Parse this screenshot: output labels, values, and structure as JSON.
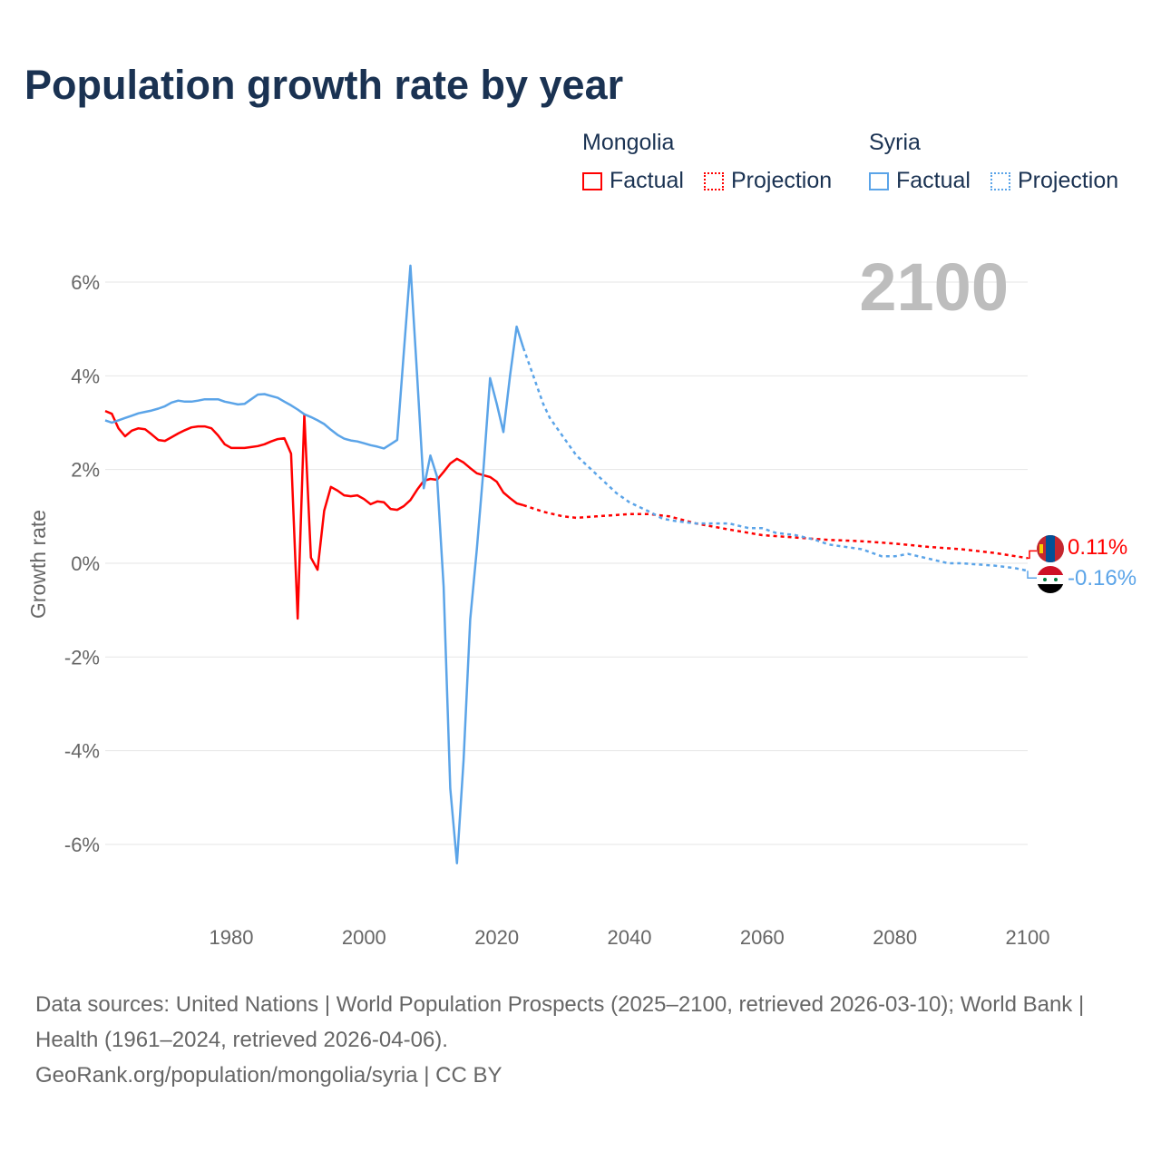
{
  "title": "Population growth rate by year",
  "legend": {
    "groups": [
      {
        "name": "Mongolia",
        "color": "#ff0000",
        "factual": "Factual",
        "projection": "Projection"
      },
      {
        "name": "Syria",
        "color": "#5ba4e8",
        "factual": "Factual",
        "projection": "Projection"
      }
    ]
  },
  "year_label": "2100",
  "end_labels": {
    "mongolia": "0.11%",
    "syria": "-0.16%"
  },
  "source": {
    "line1": "Data sources: United Nations | World Population Prospects (2025–2100, retrieved 2026-03-10); World Bank | Health (1961–2024, retrieved 2026-04-06).",
    "line2": "GeoRank.org/population/mongolia/syria | CC BY"
  },
  "chart_data": {
    "type": "line",
    "title": "Population growth rate by year",
    "xlabel": "",
    "ylabel": "Growth rate",
    "xlim": [
      1961,
      2100
    ],
    "ylim": [
      -7,
      6.5
    ],
    "xticks": [
      1980,
      2000,
      2020,
      2040,
      2060,
      2080,
      2100
    ],
    "yticks": [
      {
        "v": 6,
        "l": "6%"
      },
      {
        "v": 4,
        "l": "4%"
      },
      {
        "v": 2,
        "l": "2%"
      },
      {
        "v": 0,
        "l": "0%"
      },
      {
        "v": -2,
        "l": "-2%"
      },
      {
        "v": -4,
        "l": "-4%"
      },
      {
        "v": -6,
        "l": "-6%"
      }
    ],
    "series": [
      {
        "name": "Mongolia",
        "type": "factual",
        "color": "#ff0000",
        "points": [
          [
            1961,
            3.25
          ],
          [
            1962,
            3.19
          ],
          [
            1963,
            2.88
          ],
          [
            1964,
            2.71
          ],
          [
            1965,
            2.83
          ],
          [
            1966,
            2.88
          ],
          [
            1967,
            2.86
          ],
          [
            1968,
            2.75
          ],
          [
            1969,
            2.63
          ],
          [
            1970,
            2.61
          ],
          [
            1971,
            2.69
          ],
          [
            1972,
            2.77
          ],
          [
            1973,
            2.84
          ],
          [
            1974,
            2.9
          ],
          [
            1975,
            2.92
          ],
          [
            1976,
            2.92
          ],
          [
            1977,
            2.88
          ],
          [
            1978,
            2.73
          ],
          [
            1979,
            2.54
          ],
          [
            1980,
            2.46
          ],
          [
            1981,
            2.46
          ],
          [
            1982,
            2.46
          ],
          [
            1983,
            2.48
          ],
          [
            1984,
            2.5
          ],
          [
            1985,
            2.54
          ],
          [
            1986,
            2.6
          ],
          [
            1987,
            2.65
          ],
          [
            1988,
            2.67
          ],
          [
            1989,
            2.34
          ],
          [
            1990,
            -1.18
          ],
          [
            1991,
            3.17
          ],
          [
            1992,
            0.12
          ],
          [
            1993,
            -0.14
          ],
          [
            1994,
            1.12
          ],
          [
            1995,
            1.63
          ],
          [
            1996,
            1.55
          ],
          [
            1997,
            1.45
          ],
          [
            1998,
            1.43
          ],
          [
            1999,
            1.45
          ],
          [
            2000,
            1.37
          ],
          [
            2001,
            1.26
          ],
          [
            2002,
            1.32
          ],
          [
            2003,
            1.3
          ],
          [
            2004,
            1.16
          ],
          [
            2005,
            1.14
          ],
          [
            2006,
            1.22
          ],
          [
            2007,
            1.35
          ],
          [
            2008,
            1.57
          ],
          [
            2009,
            1.76
          ],
          [
            2010,
            1.8
          ],
          [
            2011,
            1.78
          ],
          [
            2012,
            1.95
          ],
          [
            2013,
            2.13
          ],
          [
            2014,
            2.23
          ],
          [
            2015,
            2.15
          ],
          [
            2016,
            2.03
          ],
          [
            2017,
            1.92
          ],
          [
            2018,
            1.88
          ],
          [
            2019,
            1.84
          ],
          [
            2020,
            1.74
          ],
          [
            2021,
            1.51
          ],
          [
            2022,
            1.39
          ],
          [
            2023,
            1.28
          ],
          [
            2024,
            1.24
          ]
        ]
      },
      {
        "name": "Mongolia",
        "type": "projection",
        "color": "#ff0000",
        "points": [
          [
            2024,
            1.24
          ],
          [
            2027,
            1.1
          ],
          [
            2030,
            1.0
          ],
          [
            2032,
            0.97
          ],
          [
            2035,
            1.0
          ],
          [
            2040,
            1.05
          ],
          [
            2043,
            1.05
          ],
          [
            2046,
            1.0
          ],
          [
            2050,
            0.85
          ],
          [
            2055,
            0.72
          ],
          [
            2060,
            0.6
          ],
          [
            2065,
            0.55
          ],
          [
            2070,
            0.5
          ],
          [
            2075,
            0.47
          ],
          [
            2080,
            0.42
          ],
          [
            2085,
            0.35
          ],
          [
            2090,
            0.3
          ],
          [
            2095,
            0.22
          ],
          [
            2100,
            0.11
          ]
        ]
      },
      {
        "name": "Syria",
        "type": "factual",
        "color": "#5ba4e8",
        "points": [
          [
            1961,
            3.05
          ],
          [
            1962,
            3.0
          ],
          [
            1963,
            3.05
          ],
          [
            1964,
            3.1
          ],
          [
            1965,
            3.15
          ],
          [
            1966,
            3.2
          ],
          [
            1967,
            3.23
          ],
          [
            1968,
            3.26
          ],
          [
            1969,
            3.3
          ],
          [
            1970,
            3.35
          ],
          [
            1971,
            3.43
          ],
          [
            1972,
            3.47
          ],
          [
            1973,
            3.45
          ],
          [
            1974,
            3.45
          ],
          [
            1975,
            3.47
          ],
          [
            1976,
            3.5
          ],
          [
            1977,
            3.5
          ],
          [
            1978,
            3.5
          ],
          [
            1979,
            3.45
          ],
          [
            1980,
            3.42
          ],
          [
            1981,
            3.39
          ],
          [
            1982,
            3.4
          ],
          [
            1983,
            3.5
          ],
          [
            1984,
            3.6
          ],
          [
            1985,
            3.61
          ],
          [
            1986,
            3.57
          ],
          [
            1987,
            3.53
          ],
          [
            1988,
            3.45
          ],
          [
            1989,
            3.37
          ],
          [
            1990,
            3.28
          ],
          [
            1991,
            3.18
          ],
          [
            1992,
            3.12
          ],
          [
            1993,
            3.05
          ],
          [
            1994,
            2.97
          ],
          [
            1995,
            2.85
          ],
          [
            1996,
            2.74
          ],
          [
            1997,
            2.66
          ],
          [
            1998,
            2.62
          ],
          [
            1999,
            2.6
          ],
          [
            2000,
            2.56
          ],
          [
            2001,
            2.52
          ],
          [
            2002,
            2.49
          ],
          [
            2003,
            2.45
          ],
          [
            2004,
            2.54
          ],
          [
            2005,
            2.63
          ],
          [
            2006,
            4.5
          ],
          [
            2007,
            6.35
          ],
          [
            2008,
            4.0
          ],
          [
            2009,
            1.6
          ],
          [
            2010,
            2.3
          ],
          [
            2011,
            1.85
          ],
          [
            2012,
            -0.5
          ],
          [
            2013,
            -4.8
          ],
          [
            2014,
            -6.4
          ],
          [
            2015,
            -4.2
          ],
          [
            2016,
            -1.2
          ],
          [
            2017,
            0.3
          ],
          [
            2018,
            2.0
          ],
          [
            2019,
            3.95
          ],
          [
            2020,
            3.4
          ],
          [
            2021,
            2.8
          ],
          [
            2022,
            4.0
          ],
          [
            2023,
            5.05
          ],
          [
            2024,
            4.6
          ]
        ]
      },
      {
        "name": "Syria",
        "type": "projection",
        "color": "#5ba4e8",
        "points": [
          [
            2024,
            4.6
          ],
          [
            2025,
            4.2
          ],
          [
            2026,
            3.8
          ],
          [
            2027,
            3.4
          ],
          [
            2028,
            3.1
          ],
          [
            2029,
            2.9
          ],
          [
            2030,
            2.7
          ],
          [
            2032,
            2.3
          ],
          [
            2035,
            1.9
          ],
          [
            2038,
            1.5
          ],
          [
            2040,
            1.3
          ],
          [
            2043,
            1.1
          ],
          [
            2045,
            0.95
          ],
          [
            2047,
            0.9
          ],
          [
            2050,
            0.85
          ],
          [
            2053,
            0.85
          ],
          [
            2055,
            0.85
          ],
          [
            2058,
            0.75
          ],
          [
            2060,
            0.75
          ],
          [
            2062,
            0.65
          ],
          [
            2065,
            0.6
          ],
          [
            2068,
            0.5
          ],
          [
            2070,
            0.4
          ],
          [
            2075,
            0.3
          ],
          [
            2078,
            0.15
          ],
          [
            2080,
            0.15
          ],
          [
            2082,
            0.2
          ],
          [
            2085,
            0.1
          ],
          [
            2088,
            0.0
          ],
          [
            2090,
            0.0
          ],
          [
            2095,
            -0.05
          ],
          [
            2098,
            -0.1
          ],
          [
            2100,
            -0.16
          ]
        ]
      }
    ]
  }
}
